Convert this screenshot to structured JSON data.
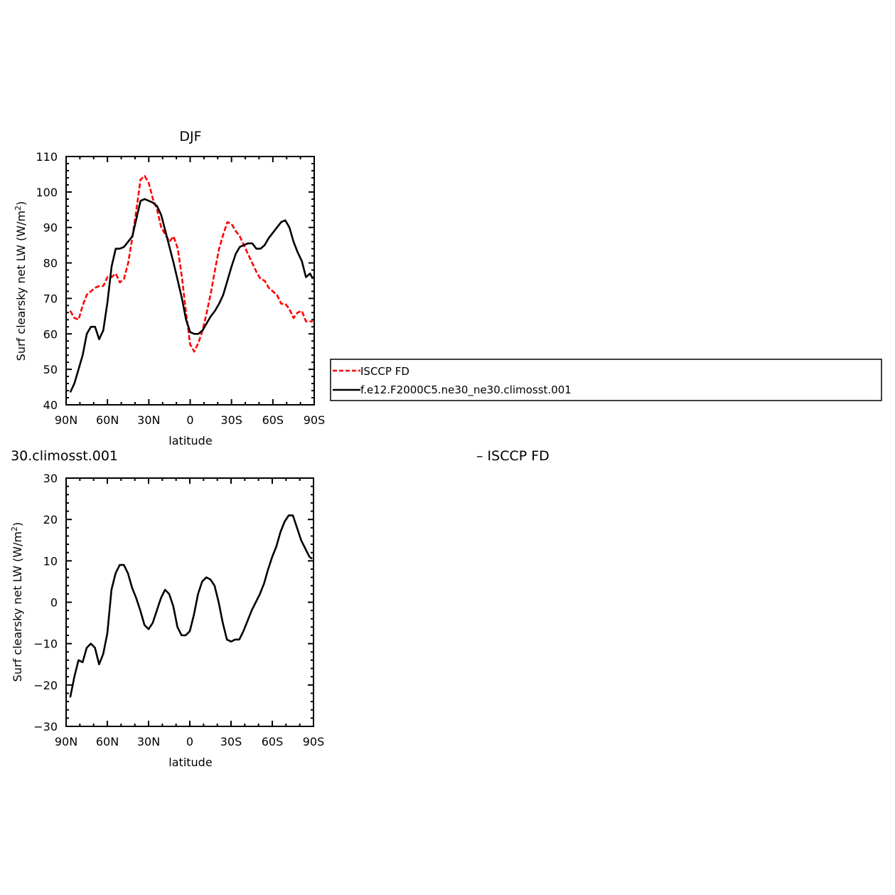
{
  "colors": {
    "observations": "#ff0000",
    "model": "#000000"
  },
  "chart_data": [
    {
      "type": "line",
      "title": "DJF",
      "xlabel": "latitude",
      "ylabel": "Surf clearsky net LW (W/m",
      "ylabel_sup": "2",
      "ylabel_tail": ")",
      "xlim": [
        90,
        -90
      ],
      "ylim": [
        40,
        110
      ],
      "xticks": [
        90,
        60,
        30,
        0,
        -30,
        -60,
        -90
      ],
      "xticklabels": [
        "90N",
        "60N",
        "30N",
        "0",
        "30S",
        "60S",
        "90S"
      ],
      "yticks": [
        40,
        50,
        60,
        70,
        80,
        90,
        100,
        110
      ],
      "yticklabels": [
        "40",
        "50",
        "60",
        "70",
        "80",
        "90",
        "100",
        "110"
      ],
      "legend": {
        "placement": "right",
        "entries": [
          "ISCCP FD",
          "f.e12.F2000C5.ne30_ne30.climosst.001"
        ]
      },
      "series": [
        {
          "name": "ISCCP FD",
          "style": "dashed",
          "color": "#ff0000",
          "x": [
            87,
            84,
            81,
            78,
            75,
            72,
            69,
            66,
            63,
            60,
            57,
            54,
            51,
            48,
            45,
            42,
            39,
            36,
            33,
            30,
            27,
            24,
            21,
            18,
            15,
            12,
            9,
            6,
            3,
            0,
            -3,
            -6,
            -9,
            -12,
            -15,
            -18,
            -21,
            -24,
            -27,
            -30,
            -33,
            -36,
            -39,
            -42,
            -45,
            -48,
            -51,
            -54,
            -57,
            -60,
            -63,
            -66,
            -69,
            -72,
            -75,
            -78,
            -81,
            -84,
            -87,
            -89
          ],
          "y": [
            66.5,
            64.5,
            64,
            68,
            71,
            72,
            73,
            73.5,
            73.5,
            76,
            76,
            77,
            74.5,
            75.5,
            80,
            87,
            95,
            103.5,
            104.5,
            102.5,
            98,
            95,
            90,
            88,
            86,
            87.5,
            84,
            76,
            66,
            57,
            55,
            57.5,
            61,
            66,
            71.5,
            78,
            84,
            88,
            91.5,
            91,
            89,
            87.5,
            85,
            82.5,
            80,
            77.5,
            75.5,
            75,
            73,
            72,
            71,
            68.5,
            68.5,
            67,
            64.5,
            66,
            66.5,
            63.5,
            63.5,
            63.5
          ]
        },
        {
          "name": "f.e12.F2000C5.ne30_ne30.climosst.001",
          "style": "solid",
          "color": "#000000",
          "x": [
            87,
            84,
            81,
            78,
            75,
            72,
            69,
            66,
            63,
            60,
            57,
            54,
            51,
            48,
            45,
            42,
            39,
            36,
            33,
            30,
            27,
            24,
            21,
            18,
            15,
            12,
            9,
            6,
            3,
            0,
            -3,
            -6,
            -9,
            -12,
            -15,
            -18,
            -21,
            -24,
            -27,
            -30,
            -33,
            -36,
            -39,
            -42,
            -45,
            -48,
            -51,
            -54,
            -57,
            -60,
            -63,
            -66,
            -69,
            -72,
            -75,
            -78,
            -81,
            -84,
            -87,
            -89
          ],
          "y": [
            43.5,
            46,
            50,
            54,
            60,
            62,
            62,
            58.5,
            61,
            69,
            79,
            84,
            84,
            84.5,
            86,
            87.5,
            92.5,
            97.5,
            98,
            97.5,
            97,
            96,
            93.5,
            89,
            84.5,
            80,
            75,
            70,
            64,
            60.5,
            60,
            60,
            61,
            63,
            65,
            66.5,
            68.5,
            71,
            75,
            79,
            82.5,
            84.5,
            85,
            85.5,
            85.5,
            84,
            84,
            85,
            87,
            88.5,
            90,
            91.5,
            92,
            90,
            86,
            83,
            80.5,
            76,
            77,
            75.5
          ]
        }
      ]
    },
    {
      "type": "line",
      "title": "30.climosst.001",
      "xlabel": "latitude",
      "ylabel": "Surf clearsky net LW (W/m",
      "ylabel_sup": "2",
      "ylabel_tail": ")",
      "xlim": [
        90,
        -90
      ],
      "ylim": [
        -30,
        30
      ],
      "xticks": [
        90,
        60,
        30,
        0,
        -30,
        -60,
        -90
      ],
      "xticklabels": [
        "90N",
        "60N",
        "30N",
        "0",
        "30S",
        "60S",
        "90S"
      ],
      "yticks": [
        -30,
        -20,
        -10,
        0,
        10,
        20,
        30
      ],
      "yticklabels": [
        "−30",
        "−20",
        "−10",
        "0",
        "10",
        "20",
        "30"
      ],
      "annotation": "– ISCCP FD",
      "series": [
        {
          "style": "solid",
          "color": "#000000",
          "x": [
            87,
            84,
            81,
            78,
            75,
            72,
            69,
            66,
            63,
            60,
            57,
            54,
            51,
            48,
            45,
            42,
            39,
            36,
            33,
            30,
            27,
            24,
            21,
            18,
            15,
            12,
            9,
            6,
            3,
            0,
            -3,
            -6,
            -9,
            -12,
            -15,
            -18,
            -21,
            -24,
            -27,
            -30,
            -33,
            -36,
            -39,
            -42,
            -45,
            -48,
            -51,
            -54,
            -57,
            -60,
            -63,
            -66,
            -69,
            -72,
            -75,
            -78,
            -81,
            -84,
            -87,
            -89
          ],
          "y": [
            -23,
            -18,
            -14,
            -14.5,
            -11,
            -10,
            -11,
            -15,
            -12.5,
            -7.5,
            3,
            7,
            9,
            9,
            7,
            3.5,
            1,
            -2,
            -5.5,
            -6.5,
            -5,
            -2,
            1,
            3,
            2,
            -1,
            -6,
            -8,
            -8,
            -7,
            -3,
            2,
            5,
            6,
            5.5,
            4,
            0,
            -5,
            -9,
            -9.5,
            -9,
            -9,
            -7,
            -4.5,
            -2,
            0,
            2,
            4.5,
            8,
            11,
            13.5,
            17,
            19.5,
            21,
            21,
            18,
            15,
            13,
            11,
            10.5
          ]
        }
      ]
    }
  ]
}
